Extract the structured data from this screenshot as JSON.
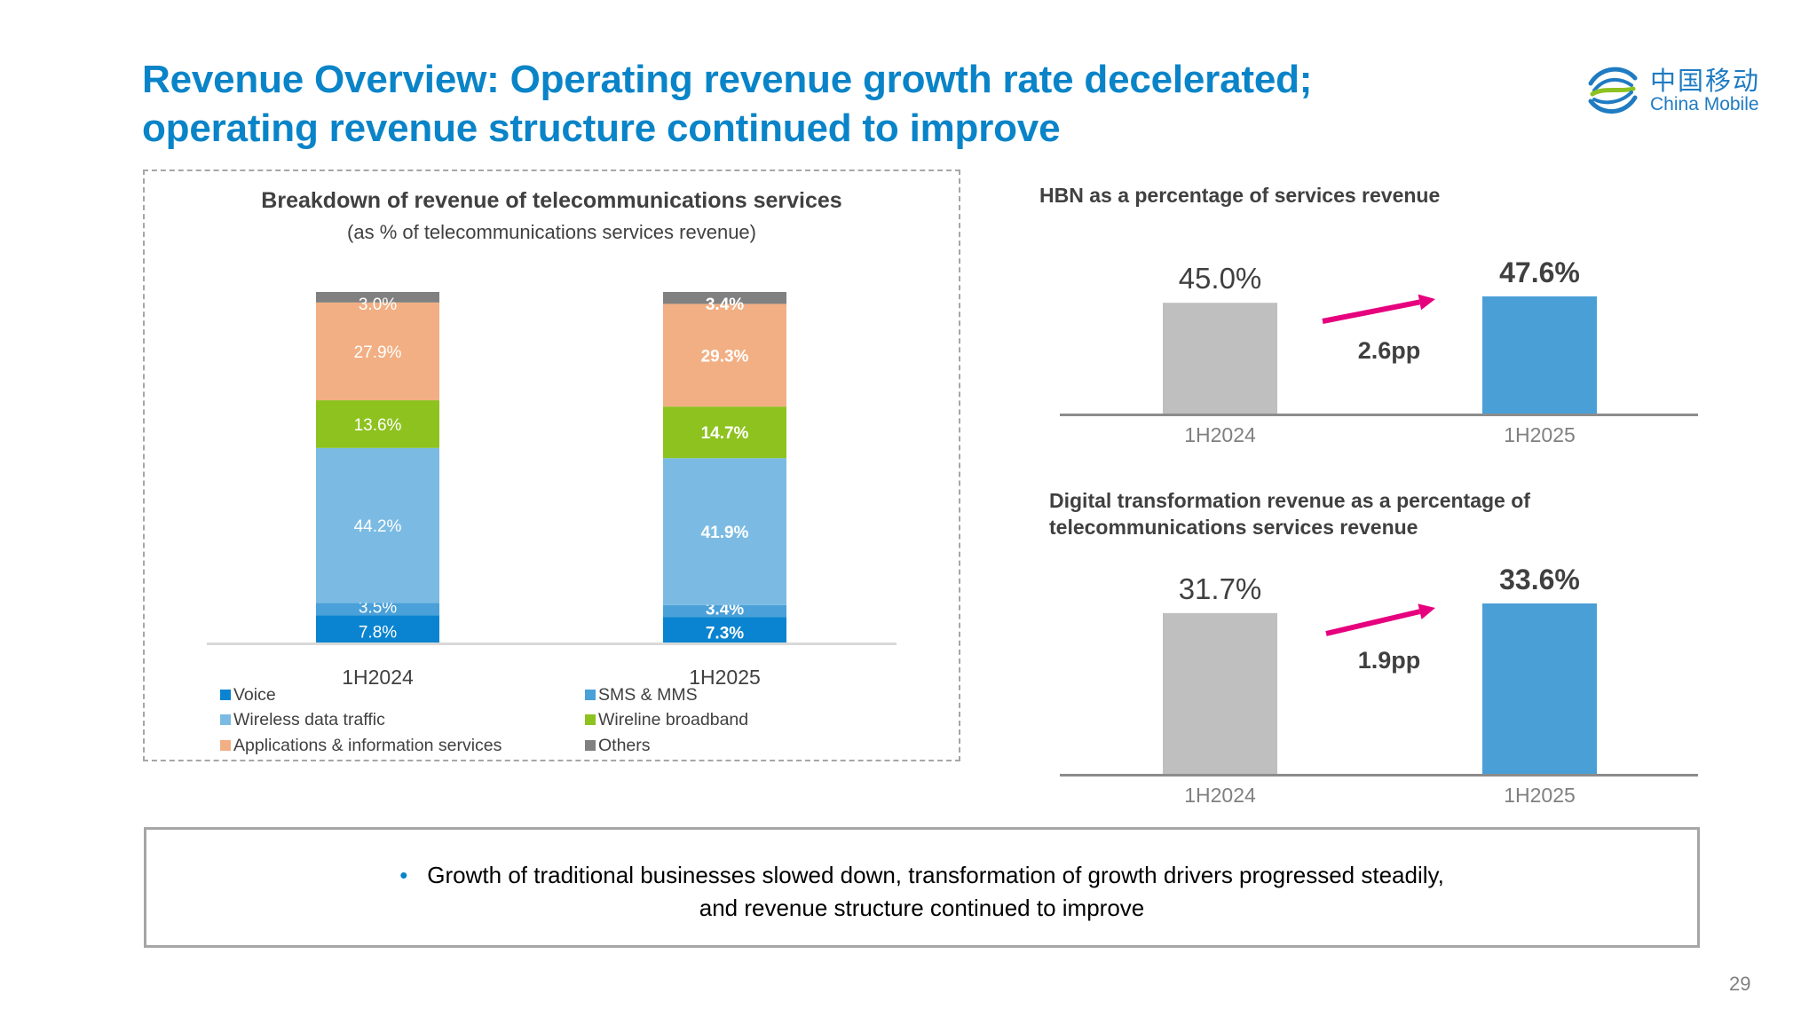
{
  "slide": {
    "title_line1": "Revenue Overview: Operating revenue growth rate decelerated;",
    "title_line2": "operating revenue structure continued to improve",
    "page_number": "29",
    "logo": {
      "chinese": "中国移动",
      "english": "China Mobile",
      "icon": "china-mobile-logo-icon"
    }
  },
  "bottom_note": {
    "bullet_icon": "bullet-dot",
    "line1": "Growth of traditional businesses slowed down, transformation of growth drivers progressed steadily,",
    "line2": "and revenue structure continued to improve"
  },
  "colors": {
    "title": "#0a84c8",
    "voice": "#0a84d0",
    "sms": "#4aa0d8",
    "wireless": "#7bbbe3",
    "wireline": "#8dc21f",
    "apps": "#f2af83",
    "others": "#808080",
    "bar_prior": "#bfbfbf",
    "bar_current": "#4a9fd6",
    "arrow": "#e6007e"
  },
  "chart_data": [
    {
      "type": "bar",
      "stacked": true,
      "title": "Breakdown of revenue of telecommunications services",
      "subtitle": "(as % of telecommunications services revenue)",
      "categories": [
        "1H2024",
        "1H2025"
      ],
      "series": [
        {
          "name": "Voice",
          "key": "voice",
          "values": [
            7.8,
            7.3
          ],
          "labels": [
            "7.8%",
            "7.3%"
          ]
        },
        {
          "name": "SMS & MMS",
          "key": "sms",
          "values": [
            3.5,
            3.4
          ],
          "labels": [
            "3.5%",
            "3.4%"
          ]
        },
        {
          "name": "Wireless data traffic",
          "key": "wireless",
          "values": [
            44.2,
            41.9
          ],
          "labels": [
            "44.2%",
            "41.9%"
          ]
        },
        {
          "name": "Wireline broadband",
          "key": "wireline",
          "values": [
            13.6,
            14.7
          ],
          "labels": [
            "13.6%",
            "14.7%"
          ]
        },
        {
          "name": "Applications & information services",
          "key": "apps",
          "values": [
            27.9,
            29.3
          ],
          "labels": [
            "27.9%",
            "29.3%"
          ]
        },
        {
          "name": "Others",
          "key": "others",
          "values": [
            3.0,
            3.4
          ],
          "labels": [
            "3.0%",
            "3.4%"
          ]
        }
      ],
      "legend_order": [
        "Voice",
        "SMS & MMS",
        "Wireless data traffic",
        "Wireline broadband",
        "Applications & information services",
        "Others"
      ],
      "legend": "bottom",
      "ylim": [
        0,
        100
      ],
      "grid": false
    },
    {
      "type": "bar",
      "title": "HBN as a percentage of services revenue",
      "categories": [
        "1H2024",
        "1H2025"
      ],
      "values": [
        45.0,
        47.6
      ],
      "labels": [
        "45.0%",
        "47.6%"
      ],
      "annotation": "2.6pp",
      "ylim": [
        0,
        47.6
      ],
      "grid": false
    },
    {
      "type": "bar",
      "title": "Digital transformation revenue as a percentage of telecommunications services revenue",
      "title_line1": "Digital transformation revenue as a percentage of",
      "title_line2": "telecommunications services revenue",
      "categories": [
        "1H2024",
        "1H2025"
      ],
      "values": [
        31.7,
        33.6
      ],
      "labels": [
        "31.7%",
        "33.6%"
      ],
      "annotation": "1.9pp",
      "ylim": [
        0,
        33.6
      ],
      "grid": false
    }
  ]
}
